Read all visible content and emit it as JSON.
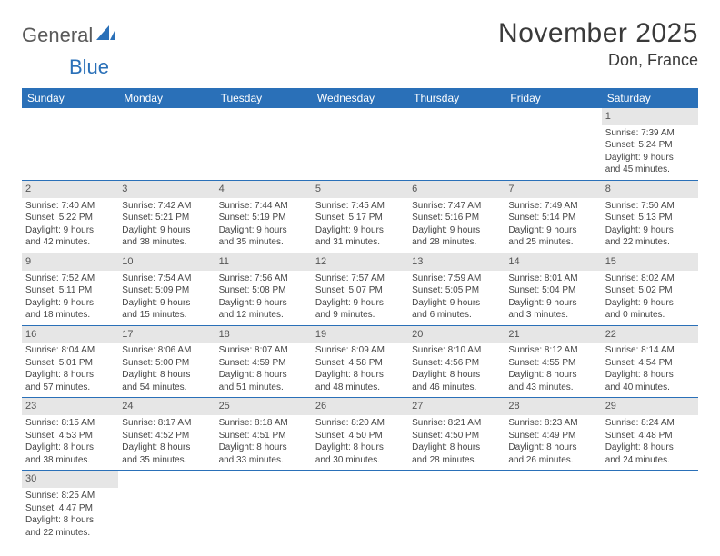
{
  "logo": {
    "text1": "General",
    "text2": "Blue",
    "shape_color": "#2a70b8"
  },
  "title": "November 2025",
  "location": "Don, France",
  "colors": {
    "header_bg": "#2a70b8",
    "header_fg": "#ffffff",
    "grid_line": "#2a70b8",
    "daynum_bg": "#e6e6e6",
    "body_text": "#454545",
    "title_text": "#3a3a3a"
  },
  "day_headers": [
    "Sunday",
    "Monday",
    "Tuesday",
    "Wednesday",
    "Thursday",
    "Friday",
    "Saturday"
  ],
  "weeks": [
    [
      null,
      null,
      null,
      null,
      null,
      null,
      {
        "n": "1",
        "sr": "Sunrise: 7:39 AM",
        "ss": "Sunset: 5:24 PM",
        "dl1": "Daylight: 9 hours",
        "dl2": "and 45 minutes."
      }
    ],
    [
      {
        "n": "2",
        "sr": "Sunrise: 7:40 AM",
        "ss": "Sunset: 5:22 PM",
        "dl1": "Daylight: 9 hours",
        "dl2": "and 42 minutes."
      },
      {
        "n": "3",
        "sr": "Sunrise: 7:42 AM",
        "ss": "Sunset: 5:21 PM",
        "dl1": "Daylight: 9 hours",
        "dl2": "and 38 minutes."
      },
      {
        "n": "4",
        "sr": "Sunrise: 7:44 AM",
        "ss": "Sunset: 5:19 PM",
        "dl1": "Daylight: 9 hours",
        "dl2": "and 35 minutes."
      },
      {
        "n": "5",
        "sr": "Sunrise: 7:45 AM",
        "ss": "Sunset: 5:17 PM",
        "dl1": "Daylight: 9 hours",
        "dl2": "and 31 minutes."
      },
      {
        "n": "6",
        "sr": "Sunrise: 7:47 AM",
        "ss": "Sunset: 5:16 PM",
        "dl1": "Daylight: 9 hours",
        "dl2": "and 28 minutes."
      },
      {
        "n": "7",
        "sr": "Sunrise: 7:49 AM",
        "ss": "Sunset: 5:14 PM",
        "dl1": "Daylight: 9 hours",
        "dl2": "and 25 minutes."
      },
      {
        "n": "8",
        "sr": "Sunrise: 7:50 AM",
        "ss": "Sunset: 5:13 PM",
        "dl1": "Daylight: 9 hours",
        "dl2": "and 22 minutes."
      }
    ],
    [
      {
        "n": "9",
        "sr": "Sunrise: 7:52 AM",
        "ss": "Sunset: 5:11 PM",
        "dl1": "Daylight: 9 hours",
        "dl2": "and 18 minutes."
      },
      {
        "n": "10",
        "sr": "Sunrise: 7:54 AM",
        "ss": "Sunset: 5:09 PM",
        "dl1": "Daylight: 9 hours",
        "dl2": "and 15 minutes."
      },
      {
        "n": "11",
        "sr": "Sunrise: 7:56 AM",
        "ss": "Sunset: 5:08 PM",
        "dl1": "Daylight: 9 hours",
        "dl2": "and 12 minutes."
      },
      {
        "n": "12",
        "sr": "Sunrise: 7:57 AM",
        "ss": "Sunset: 5:07 PM",
        "dl1": "Daylight: 9 hours",
        "dl2": "and 9 minutes."
      },
      {
        "n": "13",
        "sr": "Sunrise: 7:59 AM",
        "ss": "Sunset: 5:05 PM",
        "dl1": "Daylight: 9 hours",
        "dl2": "and 6 minutes."
      },
      {
        "n": "14",
        "sr": "Sunrise: 8:01 AM",
        "ss": "Sunset: 5:04 PM",
        "dl1": "Daylight: 9 hours",
        "dl2": "and 3 minutes."
      },
      {
        "n": "15",
        "sr": "Sunrise: 8:02 AM",
        "ss": "Sunset: 5:02 PM",
        "dl1": "Daylight: 9 hours",
        "dl2": "and 0 minutes."
      }
    ],
    [
      {
        "n": "16",
        "sr": "Sunrise: 8:04 AM",
        "ss": "Sunset: 5:01 PM",
        "dl1": "Daylight: 8 hours",
        "dl2": "and 57 minutes."
      },
      {
        "n": "17",
        "sr": "Sunrise: 8:06 AM",
        "ss": "Sunset: 5:00 PM",
        "dl1": "Daylight: 8 hours",
        "dl2": "and 54 minutes."
      },
      {
        "n": "18",
        "sr": "Sunrise: 8:07 AM",
        "ss": "Sunset: 4:59 PM",
        "dl1": "Daylight: 8 hours",
        "dl2": "and 51 minutes."
      },
      {
        "n": "19",
        "sr": "Sunrise: 8:09 AM",
        "ss": "Sunset: 4:58 PM",
        "dl1": "Daylight: 8 hours",
        "dl2": "and 48 minutes."
      },
      {
        "n": "20",
        "sr": "Sunrise: 8:10 AM",
        "ss": "Sunset: 4:56 PM",
        "dl1": "Daylight: 8 hours",
        "dl2": "and 46 minutes."
      },
      {
        "n": "21",
        "sr": "Sunrise: 8:12 AM",
        "ss": "Sunset: 4:55 PM",
        "dl1": "Daylight: 8 hours",
        "dl2": "and 43 minutes."
      },
      {
        "n": "22",
        "sr": "Sunrise: 8:14 AM",
        "ss": "Sunset: 4:54 PM",
        "dl1": "Daylight: 8 hours",
        "dl2": "and 40 minutes."
      }
    ],
    [
      {
        "n": "23",
        "sr": "Sunrise: 8:15 AM",
        "ss": "Sunset: 4:53 PM",
        "dl1": "Daylight: 8 hours",
        "dl2": "and 38 minutes."
      },
      {
        "n": "24",
        "sr": "Sunrise: 8:17 AM",
        "ss": "Sunset: 4:52 PM",
        "dl1": "Daylight: 8 hours",
        "dl2": "and 35 minutes."
      },
      {
        "n": "25",
        "sr": "Sunrise: 8:18 AM",
        "ss": "Sunset: 4:51 PM",
        "dl1": "Daylight: 8 hours",
        "dl2": "and 33 minutes."
      },
      {
        "n": "26",
        "sr": "Sunrise: 8:20 AM",
        "ss": "Sunset: 4:50 PM",
        "dl1": "Daylight: 8 hours",
        "dl2": "and 30 minutes."
      },
      {
        "n": "27",
        "sr": "Sunrise: 8:21 AM",
        "ss": "Sunset: 4:50 PM",
        "dl1": "Daylight: 8 hours",
        "dl2": "and 28 minutes."
      },
      {
        "n": "28",
        "sr": "Sunrise: 8:23 AM",
        "ss": "Sunset: 4:49 PM",
        "dl1": "Daylight: 8 hours",
        "dl2": "and 26 minutes."
      },
      {
        "n": "29",
        "sr": "Sunrise: 8:24 AM",
        "ss": "Sunset: 4:48 PM",
        "dl1": "Daylight: 8 hours",
        "dl2": "and 24 minutes."
      }
    ],
    [
      {
        "n": "30",
        "sr": "Sunrise: 8:25 AM",
        "ss": "Sunset: 4:47 PM",
        "dl1": "Daylight: 8 hours",
        "dl2": "and 22 minutes."
      },
      null,
      null,
      null,
      null,
      null,
      null
    ]
  ]
}
